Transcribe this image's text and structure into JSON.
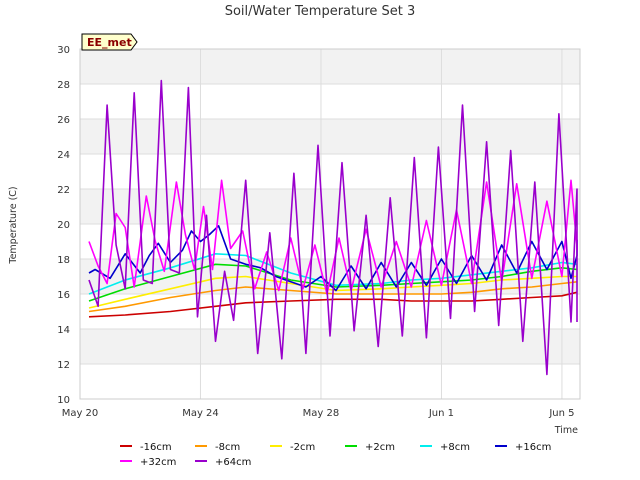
{
  "chart_data": {
    "type": "line",
    "title": "Soil/Water Temperature Set 3",
    "xlabel": "Time",
    "ylabel": "Temperature (C)",
    "site_label": "EE_met",
    "xlim": [
      0,
      16.6
    ],
    "ylim": [
      10,
      30
    ],
    "yticks": [
      10,
      12,
      14,
      16,
      18,
      20,
      22,
      24,
      26,
      28,
      30
    ],
    "xticks": [
      {
        "x": 0,
        "label": "May 20"
      },
      {
        "x": 4,
        "label": "May 24"
      },
      {
        "x": 8,
        "label": "May 28"
      },
      {
        "x": 12,
        "label": "Jun 1"
      },
      {
        "x": 16,
        "label": "Jun 5"
      }
    ],
    "grid": true,
    "legend_position": "bottom",
    "series": [
      {
        "name": "-16cm",
        "color": "#cc0000",
        "x": [
          0.3,
          1.5,
          3,
          4.5,
          5.5,
          7,
          8.5,
          10,
          11,
          12,
          13,
          14,
          15,
          16,
          17
        ],
        "y": [
          14.7,
          14.8,
          15.0,
          15.3,
          15.5,
          15.6,
          15.7,
          15.7,
          15.6,
          15.6,
          15.6,
          15.7,
          15.8,
          15.9,
          16.1
        ]
      },
      {
        "name": "-8cm",
        "color": "#ff9900",
        "x": [
          0.3,
          1.5,
          3,
          4.5,
          5.5,
          7,
          8.5,
          10,
          11,
          12,
          13,
          14,
          15,
          16,
          17
        ],
        "y": [
          15.0,
          15.3,
          15.8,
          16.2,
          16.4,
          16.2,
          16.0,
          16.0,
          16.0,
          16.0,
          16.1,
          16.3,
          16.4,
          16.6,
          16.7
        ]
      },
      {
        "name": "-2cm",
        "color": "#ffee00",
        "x": [
          0.3,
          1.5,
          3,
          4.5,
          5.5,
          7,
          8.5,
          10,
          11,
          12,
          13,
          14,
          15,
          16,
          17
        ],
        "y": [
          15.2,
          15.7,
          16.3,
          16.9,
          17.0,
          16.6,
          16.2,
          16.3,
          16.4,
          16.5,
          16.6,
          16.8,
          16.9,
          17.0,
          17.0
        ]
      },
      {
        "name": "+2cm",
        "color": "#00dd00",
        "x": [
          0.3,
          1.5,
          3,
          4.5,
          5.5,
          7,
          8.5,
          10,
          11,
          12,
          13,
          14,
          15,
          16,
          17
        ],
        "y": [
          15.6,
          16.3,
          17.0,
          17.7,
          17.6,
          16.8,
          16.4,
          16.5,
          16.6,
          16.7,
          16.8,
          17.0,
          17.3,
          17.5,
          17.4
        ]
      },
      {
        "name": "+8cm",
        "color": "#00eeee",
        "x": [
          0.3,
          1.5,
          3,
          4.5,
          5.5,
          7,
          8.5,
          10,
          11,
          12,
          13,
          14,
          15,
          16,
          17
        ],
        "y": [
          16.0,
          16.8,
          17.5,
          18.3,
          18.2,
          17.2,
          16.5,
          16.6,
          16.8,
          16.9,
          17.1,
          17.3,
          17.5,
          17.8,
          17.7
        ]
      },
      {
        "name": "+16cm",
        "color": "#0000cc",
        "x": [
          0.3,
          0.5,
          1.0,
          1.5,
          2.0,
          2.3,
          2.6,
          3.0,
          3.4,
          3.7,
          4.0,
          4.3,
          4.6,
          5.0,
          5.5,
          6.0,
          6.5,
          7.0,
          7.5,
          8.0,
          8.5,
          9.0,
          9.5,
          10.0,
          10.5,
          11.0,
          11.5,
          12.0,
          12.5,
          13.0,
          13.5,
          14.0,
          14.5,
          15.0,
          15.5,
          16.0,
          16.3,
          16.6,
          17.0
        ],
        "y": [
          17.2,
          17.4,
          16.9,
          18.3,
          17.2,
          18.2,
          18.9,
          17.8,
          18.5,
          19.6,
          19.0,
          19.4,
          19.9,
          18.0,
          17.7,
          17.5,
          17.0,
          16.7,
          16.4,
          17.0,
          16.2,
          17.6,
          16.3,
          17.8,
          16.4,
          17.8,
          16.5,
          18.0,
          16.6,
          18.2,
          16.8,
          18.8,
          17.2,
          19.0,
          17.4,
          19.0,
          16.9,
          18.2,
          19.1
        ]
      },
      {
        "name": "+32cm",
        "color": "#ff00ff",
        "x": [
          0.3,
          0.6,
          0.9,
          1.2,
          1.5,
          1.8,
          2.2,
          2.5,
          2.8,
          3.2,
          3.5,
          3.8,
          4.1,
          4.4,
          4.7,
          5.0,
          5.4,
          5.8,
          6.2,
          6.6,
          7.0,
          7.4,
          7.8,
          8.2,
          8.6,
          9.0,
          9.5,
          10.0,
          10.5,
          11.0,
          11.5,
          12.0,
          12.5,
          13.0,
          13.5,
          14.0,
          14.5,
          15.0,
          15.5,
          16.0,
          16.3,
          16.6,
          17.0
        ],
        "y": [
          19.0,
          17.6,
          16.6,
          20.6,
          19.8,
          16.4,
          21.6,
          19.0,
          17.3,
          22.4,
          19.4,
          17.4,
          21.0,
          17.4,
          22.5,
          18.6,
          19.6,
          16.3,
          18.4,
          16.2,
          19.2,
          16.3,
          18.8,
          16.0,
          19.2,
          16.2,
          19.7,
          16.4,
          19.0,
          16.4,
          20.2,
          16.5,
          20.8,
          16.6,
          22.4,
          16.7,
          22.3,
          16.9,
          21.3,
          17.0,
          22.5,
          18.7,
          18.5
        ]
      },
      {
        "name": "+64cm",
        "color": "#9900cc",
        "x": [
          0.3,
          0.6,
          0.9,
          1.2,
          1.5,
          1.8,
          2.1,
          2.4,
          2.7,
          3.0,
          3.3,
          3.6,
          3.9,
          4.2,
          4.5,
          4.8,
          5.1,
          5.5,
          5.9,
          6.3,
          6.7,
          7.1,
          7.5,
          7.9,
          8.3,
          8.7,
          9.1,
          9.5,
          9.9,
          10.3,
          10.7,
          11.1,
          11.5,
          11.9,
          12.3,
          12.7,
          13.1,
          13.5,
          13.9,
          14.3,
          14.7,
          15.1,
          15.5,
          15.9,
          16.3,
          16.6,
          17.0
        ],
        "y": [
          16.8,
          15.3,
          26.8,
          18.8,
          16.3,
          27.5,
          16.8,
          16.6,
          28.2,
          17.4,
          17.2,
          27.8,
          14.7,
          20.5,
          13.3,
          17.3,
          14.5,
          22.5,
          12.6,
          19.5,
          12.3,
          22.9,
          12.6,
          24.5,
          13.6,
          23.5,
          13.9,
          20.5,
          13.0,
          21.5,
          13.6,
          23.8,
          13.5,
          24.4,
          14.6,
          26.8,
          15.0,
          24.7,
          14.2,
          24.2,
          13.3,
          22.4,
          11.4,
          26.3,
          14.4,
          22.0,
          14.4
        ]
      }
    ]
  }
}
